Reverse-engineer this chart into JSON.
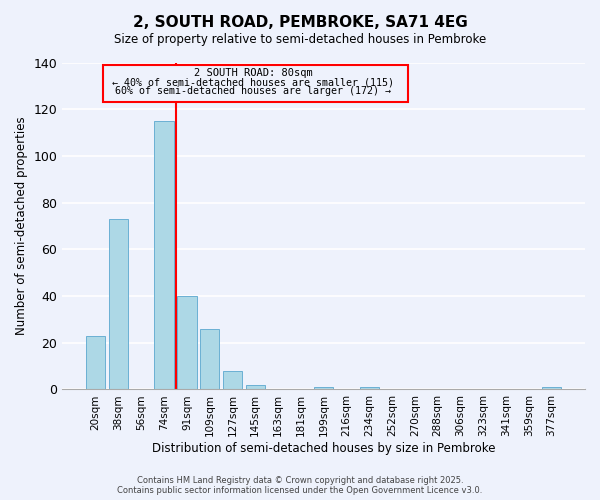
{
  "title": "2, SOUTH ROAD, PEMBROKE, SA71 4EG",
  "subtitle": "Size of property relative to semi-detached houses in Pembroke",
  "xlabel": "Distribution of semi-detached houses by size in Pembroke",
  "ylabel": "Number of semi-detached properties",
  "bin_labels": [
    "20sqm",
    "38sqm",
    "56sqm",
    "74sqm",
    "91sqm",
    "109sqm",
    "127sqm",
    "145sqm",
    "163sqm",
    "181sqm",
    "199sqm",
    "216sqm",
    "234sqm",
    "252sqm",
    "270sqm",
    "288sqm",
    "306sqm",
    "323sqm",
    "341sqm",
    "359sqm",
    "377sqm"
  ],
  "bar_heights": [
    23,
    73,
    0,
    115,
    40,
    26,
    8,
    2,
    0,
    0,
    1,
    0,
    1,
    0,
    0,
    0,
    0,
    0,
    0,
    0,
    1
  ],
  "bar_color": "#add8e6",
  "bar_edge_color": "#6ab0d4",
  "property_bin_index": 3,
  "property_label": "2 SOUTH ROAD: 80sqm",
  "annotation_line1": "← 40% of semi-detached houses are smaller (115)",
  "annotation_line2": "60% of semi-detached houses are larger (172) →",
  "vline_color": "red",
  "ylim": [
    0,
    140
  ],
  "yticks": [
    0,
    20,
    40,
    60,
    80,
    100,
    120,
    140
  ],
  "footer_line1": "Contains HM Land Registry data © Crown copyright and database right 2025.",
  "footer_line2": "Contains public sector information licensed under the Open Government Licence v3.0.",
  "background_color": "#eef2fc",
  "grid_color": "white"
}
